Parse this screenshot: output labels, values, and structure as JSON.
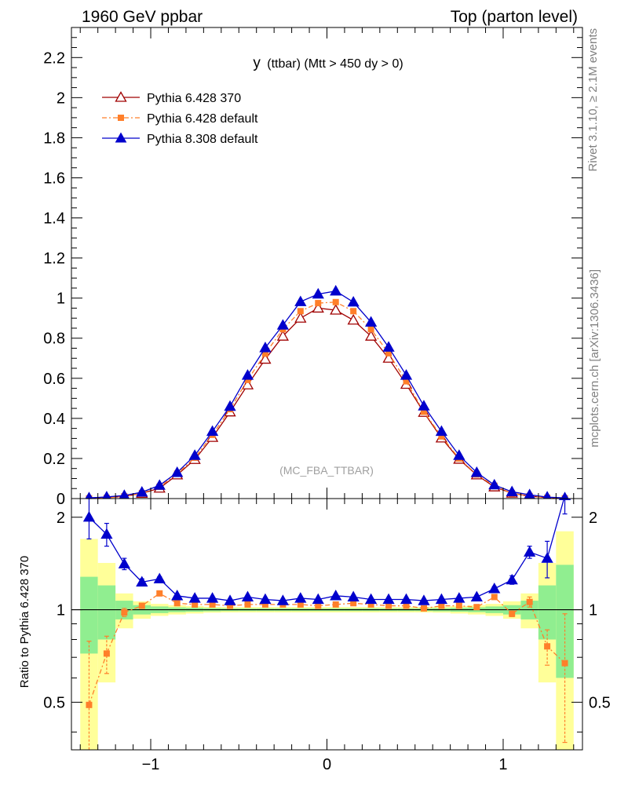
{
  "header": {
    "left": "1960 GeV ppbar",
    "right": "Top (parton level)"
  },
  "side": {
    "rivet": "Rivet 3.1.10, ≥ 2.1M events",
    "mcplots": "mcplots.cern.ch [arXiv:1306.3436]"
  },
  "chart_data": {
    "type": "line",
    "title_main": "y",
    "title_rest": "(ttbar) (Mtt > 450 dy > 0)",
    "watermark": "(MC_FBA_TTBAR)",
    "ratio_ylabel": "Ratio to Pythia 6.428 370",
    "x": [
      -1.35,
      -1.25,
      -1.15,
      -1.05,
      -0.95,
      -0.85,
      -0.75,
      -0.65,
      -0.55,
      -0.45,
      -0.35,
      -0.25,
      -0.15,
      -0.05,
      0.05,
      0.15,
      0.25,
      0.35,
      0.45,
      0.55,
      0.65,
      0.75,
      0.85,
      0.95,
      1.05,
      1.15,
      1.25,
      1.35
    ],
    "xlim": [
      -1.45,
      1.45
    ],
    "ylim": [
      0,
      2.35
    ],
    "ratio_ylim": [
      0.35,
      2.3
    ],
    "x_ticks": [
      -1,
      0,
      1
    ],
    "x_tick_labels": [
      "−1",
      "0",
      "1"
    ],
    "y_ticks": [
      0,
      0.2,
      0.4,
      0.6,
      0.8,
      1,
      1.2,
      1.4,
      1.6,
      1.8,
      2,
      2.2
    ],
    "y_tick_labels": [
      "0",
      "0.2",
      "0.4",
      "0.6",
      "0.8",
      "1",
      "1.2",
      "1.4",
      "1.6",
      "1.8",
      "2",
      "2.2"
    ],
    "ratio_ticks": [
      0.5,
      1,
      2
    ],
    "ratio_tick_labels": [
      "0.5",
      "1",
      "2"
    ],
    "legend_position": "top-left",
    "series": [
      {
        "name": "Pythia 6.428 370",
        "color": "#a00000",
        "marker": "open-triangle",
        "values": [
          0.0018,
          0.0045,
          0.011,
          0.026,
          0.052,
          0.118,
          0.195,
          0.305,
          0.432,
          0.567,
          0.695,
          0.81,
          0.9,
          0.95,
          0.94,
          0.89,
          0.81,
          0.7,
          0.57,
          0.43,
          0.302,
          0.196,
          0.118,
          0.058,
          0.027,
          0.012,
          0.005,
          0.0018
        ],
        "ratio": [
          1,
          1,
          1,
          1,
          1,
          1,
          1,
          1,
          1,
          1,
          1,
          1,
          1,
          1,
          1,
          1,
          1,
          1,
          1,
          1,
          1,
          1,
          1,
          1,
          1,
          1,
          1,
          1
        ]
      },
      {
        "name": "Pythia 6.428 default",
        "color": "#ff7f2a",
        "marker": "square",
        "values": [
          0.0009,
          0.0033,
          0.011,
          0.027,
          0.059,
          0.124,
          0.204,
          0.318,
          0.446,
          0.592,
          0.723,
          0.845,
          0.935,
          0.975,
          0.98,
          0.935,
          0.845,
          0.725,
          0.585,
          0.433,
          0.31,
          0.2,
          0.12,
          0.064,
          0.026,
          0.0125,
          0.0038,
          0.0012
        ],
        "ratio": [
          0.49,
          0.72,
          0.98,
          1.03,
          1.13,
          1.05,
          1.04,
          1.04,
          1.03,
          1.04,
          1.04,
          1.04,
          1.04,
          1.03,
          1.04,
          1.05,
          1.04,
          1.03,
          1.03,
          1.01,
          1.03,
          1.03,
          1.02,
          1.1,
          0.97,
          1.06,
          0.76,
          0.67
        ],
        "ratio_err": [
          0.3,
          0.1,
          0.03,
          0.02,
          0.015,
          0.01,
          0.01,
          0.008,
          0.008,
          0.008,
          0.008,
          0.008,
          0.008,
          0.008,
          0.008,
          0.008,
          0.008,
          0.008,
          0.008,
          0.008,
          0.008,
          0.01,
          0.01,
          0.015,
          0.02,
          0.04,
          0.1,
          0.3
        ]
      },
      {
        "name": "Pythia 8.308 default",
        "color": "#0000cc",
        "marker": "filled-triangle",
        "values": [
          0.0036,
          0.008,
          0.0155,
          0.032,
          0.066,
          0.13,
          0.215,
          0.335,
          0.46,
          0.615,
          0.752,
          0.865,
          0.982,
          1.02,
          1.035,
          0.98,
          0.88,
          0.755,
          0.615,
          0.462,
          0.335,
          0.215,
          0.13,
          0.068,
          0.034,
          0.019,
          0.0074,
          0.0035
        ],
        "ratio": [
          2.0,
          1.76,
          1.41,
          1.23,
          1.26,
          1.11,
          1.09,
          1.09,
          1.07,
          1.1,
          1.08,
          1.07,
          1.09,
          1.08,
          1.11,
          1.1,
          1.08,
          1.08,
          1.08,
          1.07,
          1.08,
          1.09,
          1.1,
          1.17,
          1.25,
          1.54,
          1.47,
          2.35
        ],
        "ratio_err": [
          0.3,
          0.15,
          0.06,
          0.03,
          0.02,
          0.012,
          0.01,
          0.008,
          0.008,
          0.008,
          0.008,
          0.008,
          0.008,
          0.008,
          0.008,
          0.008,
          0.008,
          0.008,
          0.008,
          0.008,
          0.008,
          0.01,
          0.012,
          0.02,
          0.04,
          0.07,
          0.2,
          0.3
        ]
      }
    ],
    "bands": {
      "green_color": "#90ee90",
      "yellow_color": "#ffff99",
      "green_halfwidth": [
        0.28,
        0.2,
        0.07,
        0.035,
        0.025,
        0.018,
        0.015,
        0.012,
        0.01,
        0.01,
        0.01,
        0.01,
        0.01,
        0.01,
        0.01,
        0.01,
        0.01,
        0.01,
        0.01,
        0.01,
        0.012,
        0.015,
        0.018,
        0.025,
        0.035,
        0.07,
        0.2,
        0.4
      ],
      "yellow_halfwidth": [
        0.7,
        0.42,
        0.13,
        0.065,
        0.045,
        0.035,
        0.028,
        0.022,
        0.02,
        0.02,
        0.02,
        0.02,
        0.02,
        0.02,
        0.02,
        0.02,
        0.02,
        0.02,
        0.02,
        0.02,
        0.022,
        0.028,
        0.035,
        0.045,
        0.065,
        0.13,
        0.42,
        0.8
      ]
    }
  }
}
